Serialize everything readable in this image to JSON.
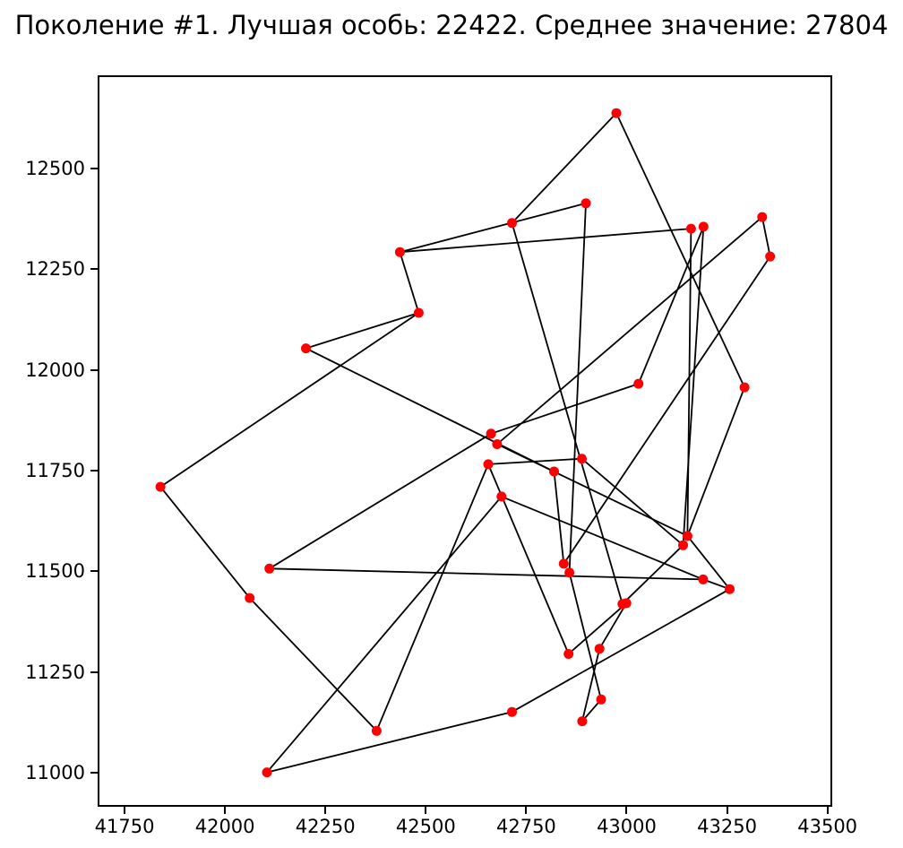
{
  "title": "Поколение #1. Лучшая особь: 22422. Среднее значение: 27804",
  "colors": {
    "point": "#ff0000",
    "line": "#000000",
    "text": "#000000",
    "background": "#ffffff"
  },
  "chart_data": {
    "type": "scatter",
    "title": "Поколение #1. Лучшая особь: 22422. Среднее значение: 27804",
    "xlabel": "",
    "ylabel": "",
    "grid": false,
    "legend": "none",
    "xlim": [
      41683,
      43503
    ],
    "ylim": [
      10924,
      12731.5
    ],
    "x_ticks": [
      41750,
      42000,
      42250,
      42500,
      42750,
      43000,
      43250,
      43500
    ],
    "y_ticks": [
      11000,
      11250,
      11500,
      11750,
      12000,
      12250,
      12500
    ],
    "best_value": 22422,
    "mean_value": 27804,
    "generation": 1,
    "points": [
      [
        42970,
        12642
      ],
      [
        42894,
        12418
      ],
      [
        42710,
        12369
      ],
      [
        42431,
        12297
      ],
      [
        42478,
        12146
      ],
      [
        43156,
        12355
      ],
      [
        43187,
        12360
      ],
      [
        43333,
        12384
      ],
      [
        43353,
        12286
      ],
      [
        42197,
        12058
      ],
      [
        41835,
        11714
      ],
      [
        42106,
        11511
      ],
      [
        42057,
        11438
      ],
      [
        42658,
        11846
      ],
      [
        42673,
        11820
      ],
      [
        42651,
        11770
      ],
      [
        42815,
        11752
      ],
      [
        42884,
        11784
      ],
      [
        42684,
        11690
      ],
      [
        42839,
        11523
      ],
      [
        42853,
        11501
      ],
      [
        43025,
        11970
      ],
      [
        43289,
        11961
      ],
      [
        43147,
        11592
      ],
      [
        43136,
        11569
      ],
      [
        43186,
        11484
      ],
      [
        43252,
        11460
      ],
      [
        42100,
        11005
      ],
      [
        42373,
        11108
      ],
      [
        42710,
        11155
      ],
      [
        42851,
        11299
      ],
      [
        42885,
        11132
      ],
      [
        42928,
        11312
      ],
      [
        42932,
        11186
      ],
      [
        42985,
        11423
      ],
      [
        42995,
        11425
      ]
    ],
    "segments": [
      [
        0,
        2
      ],
      [
        0,
        22
      ],
      [
        1,
        3
      ],
      [
        1,
        20
      ],
      [
        2,
        34
      ],
      [
        3,
        4
      ],
      [
        3,
        5
      ],
      [
        4,
        9
      ],
      [
        4,
        10
      ],
      [
        5,
        23
      ],
      [
        6,
        21
      ],
      [
        6,
        24
      ],
      [
        7,
        8
      ],
      [
        7,
        14
      ],
      [
        8,
        19
      ],
      [
        9,
        16
      ],
      [
        10,
        12
      ],
      [
        11,
        13
      ],
      [
        11,
        25
      ],
      [
        12,
        28
      ],
      [
        13,
        21
      ],
      [
        14,
        23
      ],
      [
        15,
        17
      ],
      [
        15,
        28
      ],
      [
        15,
        30
      ],
      [
        16,
        19
      ],
      [
        17,
        24
      ],
      [
        18,
        25
      ],
      [
        18,
        27
      ],
      [
        20,
        33
      ],
      [
        22,
        23
      ],
      [
        23,
        26
      ],
      [
        24,
        34
      ],
      [
        25,
        26
      ],
      [
        26,
        29
      ],
      [
        27,
        29
      ],
      [
        30,
        35
      ],
      [
        31,
        32
      ],
      [
        31,
        33
      ],
      [
        32,
        35
      ]
    ],
    "marker_radius": 5.5,
    "line_width": 1.8
  }
}
